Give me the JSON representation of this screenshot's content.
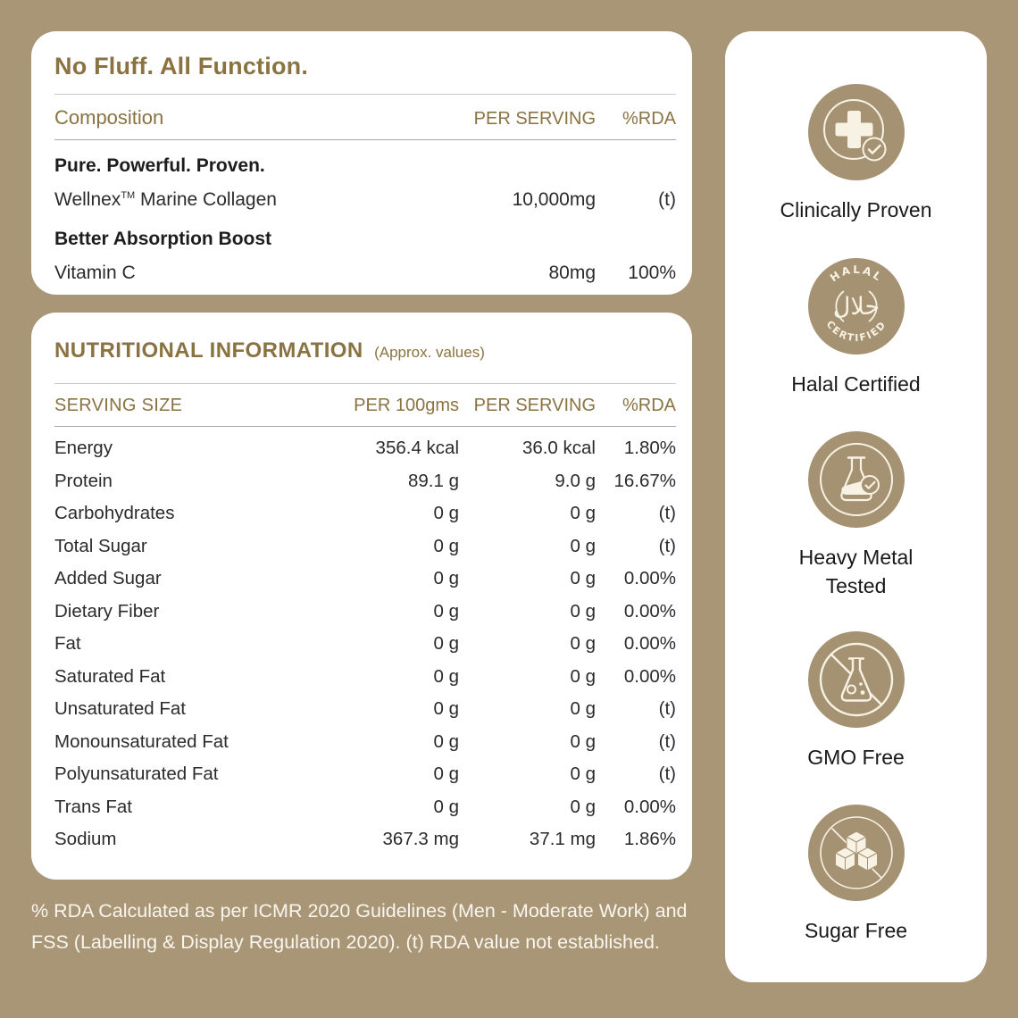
{
  "theme": {
    "background": "#a89677",
    "card_bg": "#ffffff",
    "gold_text": "#8a7341",
    "dark_text": "#1d1d1d",
    "badge_circle": "#a59272",
    "badge_icon_stroke": "#f8f2e4",
    "footnote_text": "#faf6ee"
  },
  "composition_card": {
    "title": "No Fluff. All Function.",
    "header": {
      "label": "Composition",
      "per_serving": "PER SERVING",
      "rda": "%RDA"
    },
    "section1_heading": "Pure. Powerful. Proven.",
    "row1": {
      "name_pre": "Wellnex",
      "name_sup": "TM",
      "name_post": " Marine Collagen",
      "per_serving": "10,000mg",
      "rda": "(t)"
    },
    "section2_heading": "Better Absorption Boost",
    "row2": {
      "name": "Vitamin C",
      "per_serving": "80mg",
      "rda": "100%"
    }
  },
  "nutrition_card": {
    "title": "NUTRITIONAL INFORMATION",
    "subtitle": "(Approx. values)",
    "headers": [
      "SERVING SIZE",
      "PER 100gms",
      "PER SERVING",
      "%RDA"
    ],
    "rows": [
      [
        "Energy",
        "356.4 kcal",
        "36.0 kcal",
        "1.80%"
      ],
      [
        "Protein",
        "89.1 g",
        "9.0 g",
        "16.67%"
      ],
      [
        "Carbohydrates",
        "0 g",
        "0 g",
        "(t)"
      ],
      [
        "Total Sugar",
        "0 g",
        "0 g",
        "(t)"
      ],
      [
        "Added Sugar",
        "0 g",
        "0 g",
        "0.00%"
      ],
      [
        "Dietary Fiber",
        "0 g",
        "0 g",
        "0.00%"
      ],
      [
        "Fat",
        "0 g",
        "0 g",
        "0.00%"
      ],
      [
        "Saturated Fat",
        "0 g",
        "0 g",
        "0.00%"
      ],
      [
        "Unsaturated Fat",
        "0 g",
        "0 g",
        "(t)"
      ],
      [
        "Monounsaturated Fat",
        "0 g",
        "0 g",
        "(t)"
      ],
      [
        "Polyunsaturated Fat",
        "0 g",
        "0 g",
        "(t)"
      ],
      [
        "Trans Fat",
        "0 g",
        "0 g",
        "0.00%"
      ],
      [
        "Sodium",
        "367.3 mg",
        "37.1 mg",
        "1.86%"
      ]
    ]
  },
  "footnote": "% RDA Calculated as per ICMR 2020 Guidelines (Men - Moderate Work) and FSS (Labelling & Display Regulation 2020). (t) RDA value not established.",
  "badges": [
    {
      "label": "Clinically Proven"
    },
    {
      "label": "Halal Certified",
      "seal_top": "HALAL",
      "seal_bottom": "CERTIFIED",
      "seal_center": "حلال"
    },
    {
      "label": "Heavy Metal Tested"
    },
    {
      "label": "GMO Free"
    },
    {
      "label": "Sugar Free"
    }
  ]
}
